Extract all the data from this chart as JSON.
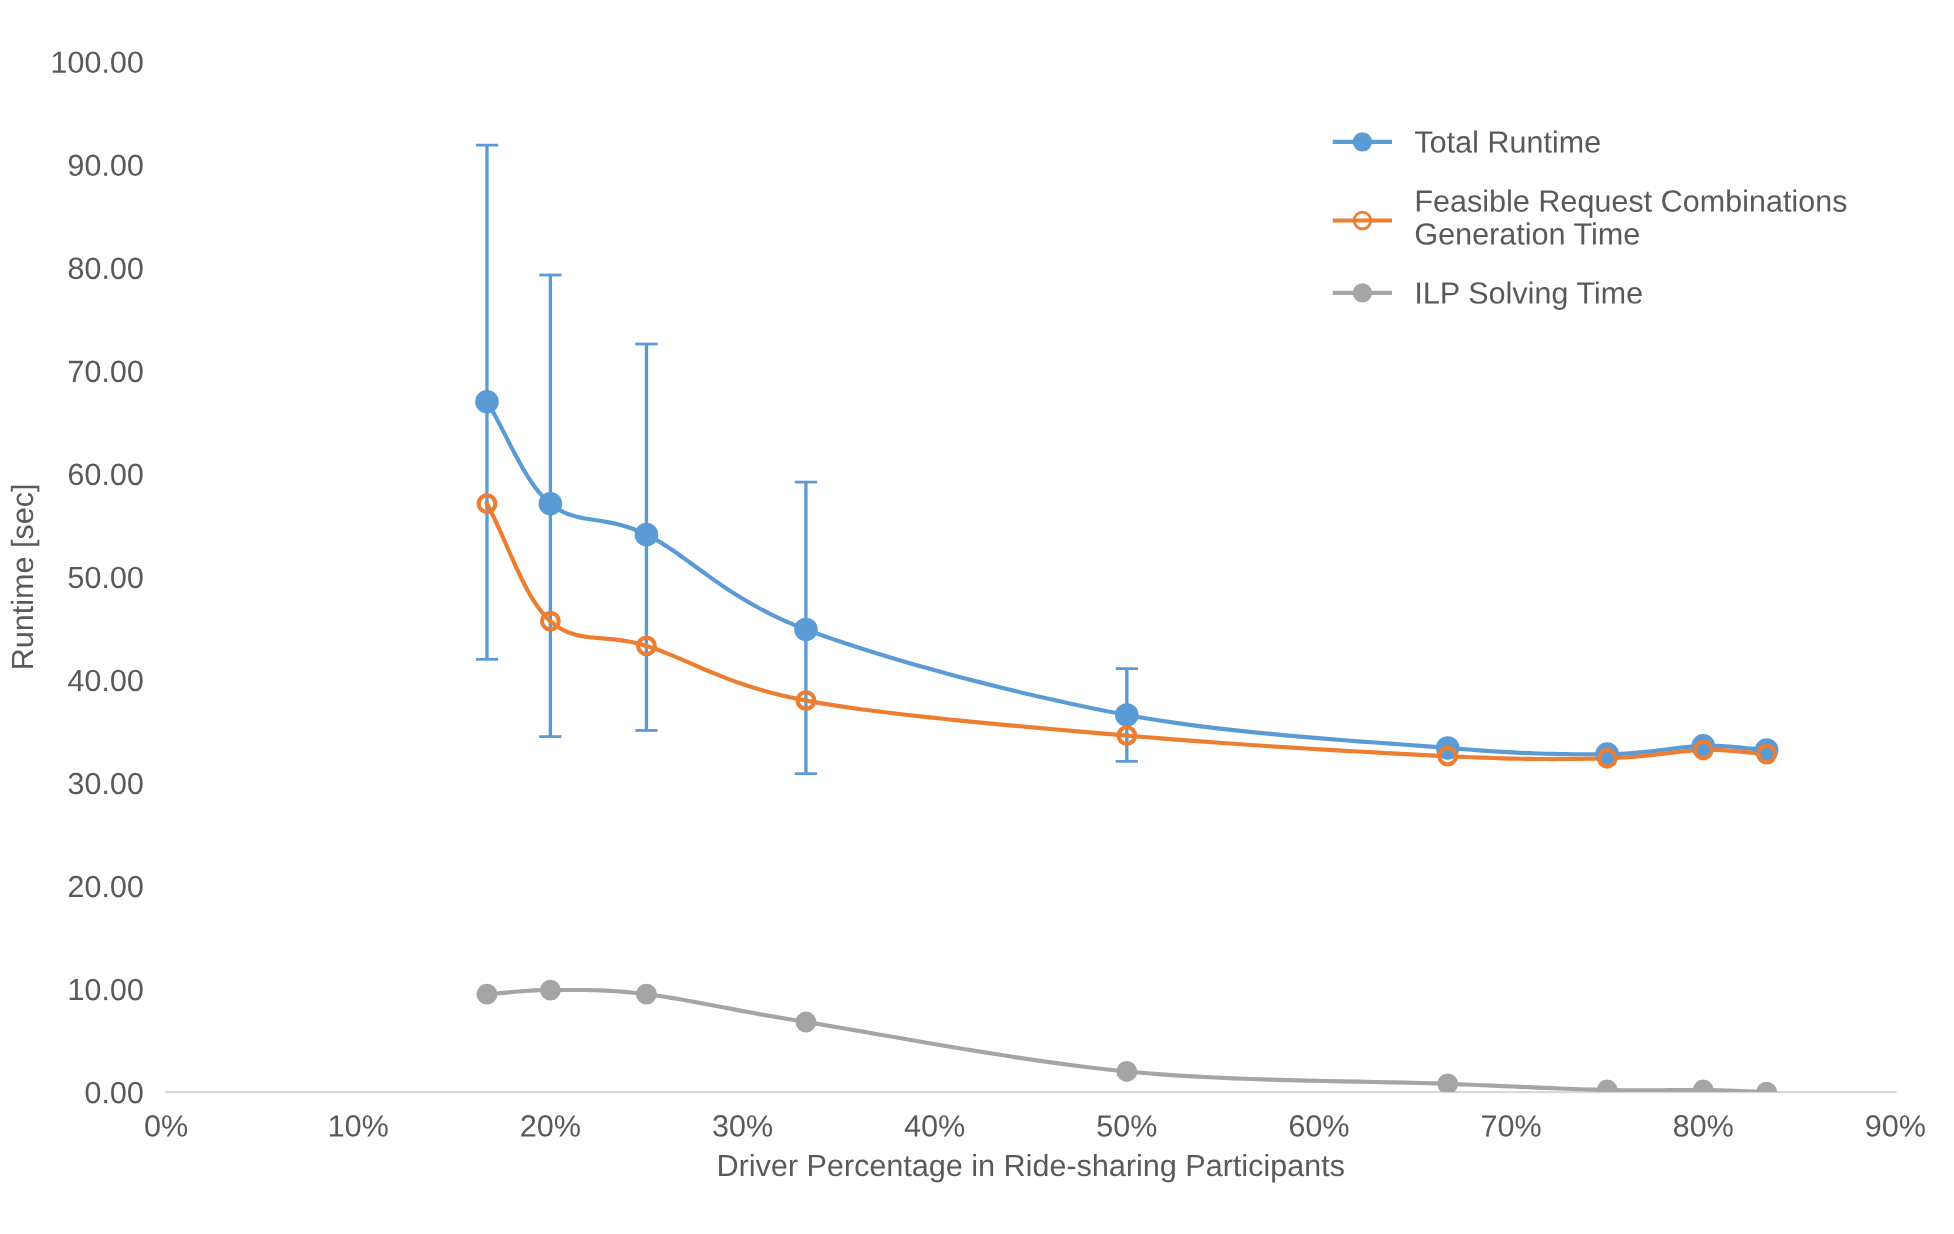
{
  "chart_data": {
    "type": "line",
    "xlabel": "Driver Percentage in Ride-sharing Participants",
    "ylabel": "Runtime [sec]",
    "x": [
      16.7,
      20,
      25,
      33.3,
      50,
      66.7,
      75,
      80,
      83.3
    ],
    "series": [
      {
        "name": "Total Runtime",
        "color": "#5b9bd5",
        "values": [
          67.0,
          57.1,
          54.1,
          44.9,
          36.6,
          33.4,
          32.8,
          33.6,
          33.2
        ],
        "errors": [
          [
            42.0,
            91.9
          ],
          [
            34.5,
            79.3
          ],
          [
            35.1,
            72.6
          ],
          [
            30.9,
            59.2
          ],
          [
            32.1,
            41.1
          ],
          null,
          null,
          null,
          null
        ]
      },
      {
        "name": "Feasible Request Combinations\nGeneration Time",
        "color": "#ed7d31",
        "values": [
          57.1,
          45.7,
          43.3,
          38.0,
          34.6,
          32.6,
          32.4,
          33.2,
          32.8
        ]
      },
      {
        "name": "ILP Solving Time",
        "color": "#a5a5a5",
        "values": [
          9.5,
          9.9,
          9.5,
          6.8,
          2.0,
          0.8,
          0.2,
          0.2,
          0.0
        ]
      }
    ],
    "xlim": [
      0,
      90
    ],
    "xticks": [
      {
        "value": 0,
        "label": "0%"
      },
      {
        "value": 10,
        "label": "10%"
      },
      {
        "value": 20,
        "label": "20%"
      },
      {
        "value": 30,
        "label": "30%"
      },
      {
        "value": 40,
        "label": "40%"
      },
      {
        "value": 50,
        "label": "50%"
      },
      {
        "value": 60,
        "label": "60%"
      },
      {
        "value": 70,
        "label": "70%"
      },
      {
        "value": 80,
        "label": "80%"
      },
      {
        "value": 90,
        "label": "90%"
      }
    ],
    "ylim": [
      0,
      100
    ],
    "yticks": [
      {
        "value": 0,
        "label": "0.00"
      },
      {
        "value": 10,
        "label": "10.00"
      },
      {
        "value": 20,
        "label": "20.00"
      },
      {
        "value": 30,
        "label": "30.00"
      },
      {
        "value": 40,
        "label": "40.00"
      },
      {
        "value": 50,
        "label": "50.00"
      },
      {
        "value": 60,
        "label": "60.00"
      },
      {
        "value": 70,
        "label": "70.00"
      },
      {
        "value": 80,
        "label": "80.00"
      },
      {
        "value": 90,
        "label": "90.00"
      },
      {
        "value": 100,
        "label": "100.00"
      }
    ],
    "grid": false,
    "legend": "top right",
    "marker": "circle",
    "line_style": "solid"
  }
}
